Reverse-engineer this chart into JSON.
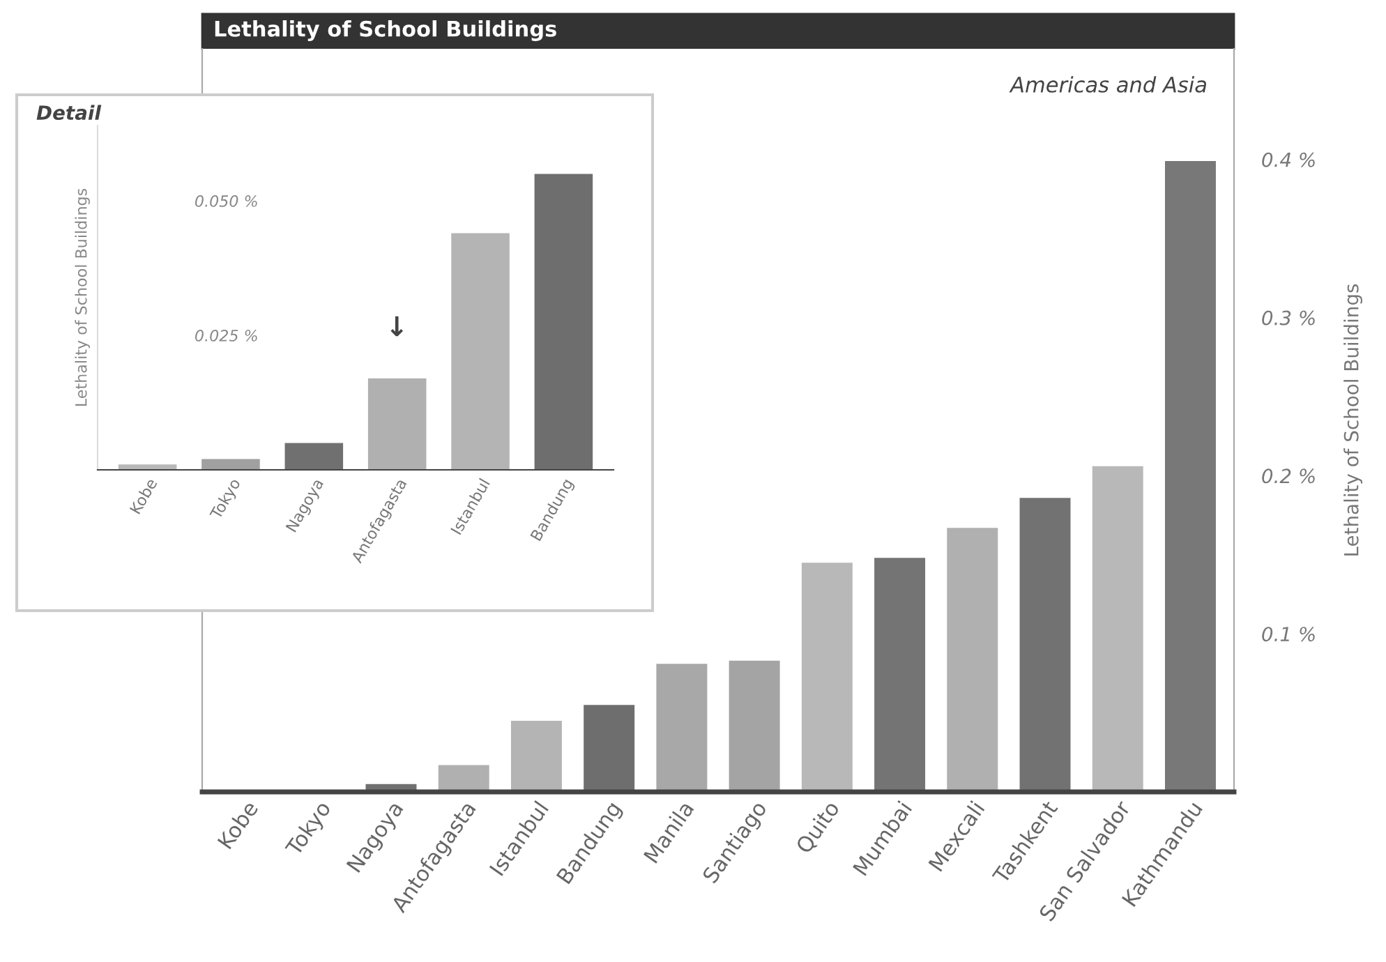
{
  "chart_data": [
    {
      "type": "bar",
      "title": "Lethality of School Buildings",
      "subtitle": "Americas and Asia",
      "ylabel": "Lethality of School Buildings",
      "categories": [
        "Kobe",
        "Tokyo",
        "Nagoya",
        "Antofagasta",
        "Istanbul",
        "Bandung",
        "Manila",
        "Santiago",
        "Quito",
        "Mumbai",
        "Mexcali",
        "Tashkent",
        "San Salvador",
        "Kathmandu"
      ],
      "values": [
        0.001,
        0.001,
        0.005,
        0.017,
        0.045,
        0.055,
        0.081,
        0.083,
        0.145,
        0.148,
        0.167,
        0.186,
        0.206,
        0.399
      ],
      "colors": [
        "#b8b8b8",
        "#a0a0a0",
        "#707070",
        "#b0b0b0",
        "#b4b4b4",
        "#6e6e6e",
        "#a8a8a8",
        "#a4a4a4",
        "#b8b8b8",
        "#747474",
        "#b0b0b0",
        "#727272",
        "#b8b8b8",
        "#787878"
      ],
      "ylim": [
        0,
        0.47
      ],
      "yticks": [
        {
          "value": 0.1,
          "label": "0.1 %"
        },
        {
          "value": 0.2,
          "label": "0.2 %"
        },
        {
          "value": 0.3,
          "label": "0.3 %"
        },
        {
          "value": 0.4,
          "label": "0.4 %"
        }
      ],
      "grid": false,
      "legend": false
    },
    {
      "type": "bar",
      "title": "Detail",
      "ylabel": "Lethality of School Buildings",
      "categories": [
        "Kobe",
        "Tokyo",
        "Nagoya",
        "Antofagasta",
        "Istanbul",
        "Bandung"
      ],
      "values": [
        0.001,
        0.002,
        0.005,
        0.017,
        0.044,
        0.055
      ],
      "colors": [
        "#b8b8b8",
        "#a0a0a0",
        "#707070",
        "#b0b0b0",
        "#b4b4b4",
        "#6e6e6e"
      ],
      "ylim": [
        0,
        0.064
      ],
      "yticks": [
        {
          "value": 0.025,
          "label": "0.025 %"
        },
        {
          "value": 0.05,
          "label": "0.050 %"
        }
      ],
      "annotations": [
        "↓"
      ],
      "grid": false,
      "legend": false
    }
  ]
}
